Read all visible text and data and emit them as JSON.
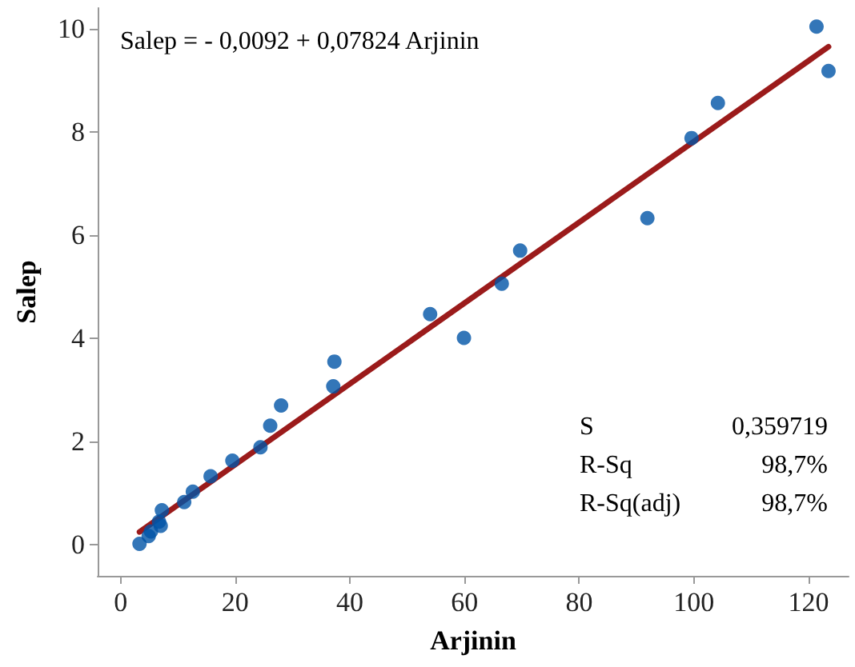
{
  "chart_data": {
    "type": "scatter",
    "xlabel": "Arjinin",
    "ylabel": "Salep",
    "annotations": [
      "Salep = - 0,0092 + 0,07824 Arjinin",
      "S",
      "0,359719",
      "R-Sq",
      "98,7%",
      "R-Sq(adj)",
      "98,7%"
    ],
    "series": [
      {
        "color": "#0054a6",
        "marker": "circle",
        "x": [
          3.3,
          4.9,
          5.3,
          6.7,
          7.0,
          7.2,
          11.1,
          12.6,
          15.7,
          19.5,
          24.4,
          26.1,
          28.0,
          37.1,
          37.3,
          54.0,
          59.9,
          66.5,
          69.7,
          91.9,
          99.6,
          104.2,
          121.4,
          123.5
        ],
        "values": [
          0.02,
          0.17,
          0.26,
          0.45,
          0.37,
          0.67,
          0.83,
          1.03,
          1.33,
          1.63,
          1.89,
          2.31,
          2.7,
          3.07,
          3.55,
          4.47,
          4.01,
          5.06,
          5.7,
          6.33,
          7.88,
          8.56,
          10.04,
          9.18
        ]
      },
      {
        "type": "line",
        "color": "#9b1b1b",
        "marker": "none",
        "line_style": "solid",
        "x": [
          3.3,
          123.5
        ],
        "values": [
          0.25,
          9.65
        ]
      }
    ],
    "xlim": [
      -4,
      127
    ],
    "ylim": [
      -0.6,
      10.4
    ],
    "xticks": [
      0,
      20,
      40,
      60,
      80,
      100,
      120
    ],
    "yticks": [
      0,
      2,
      4,
      6,
      8,
      10
    ],
    "grid": false
  }
}
